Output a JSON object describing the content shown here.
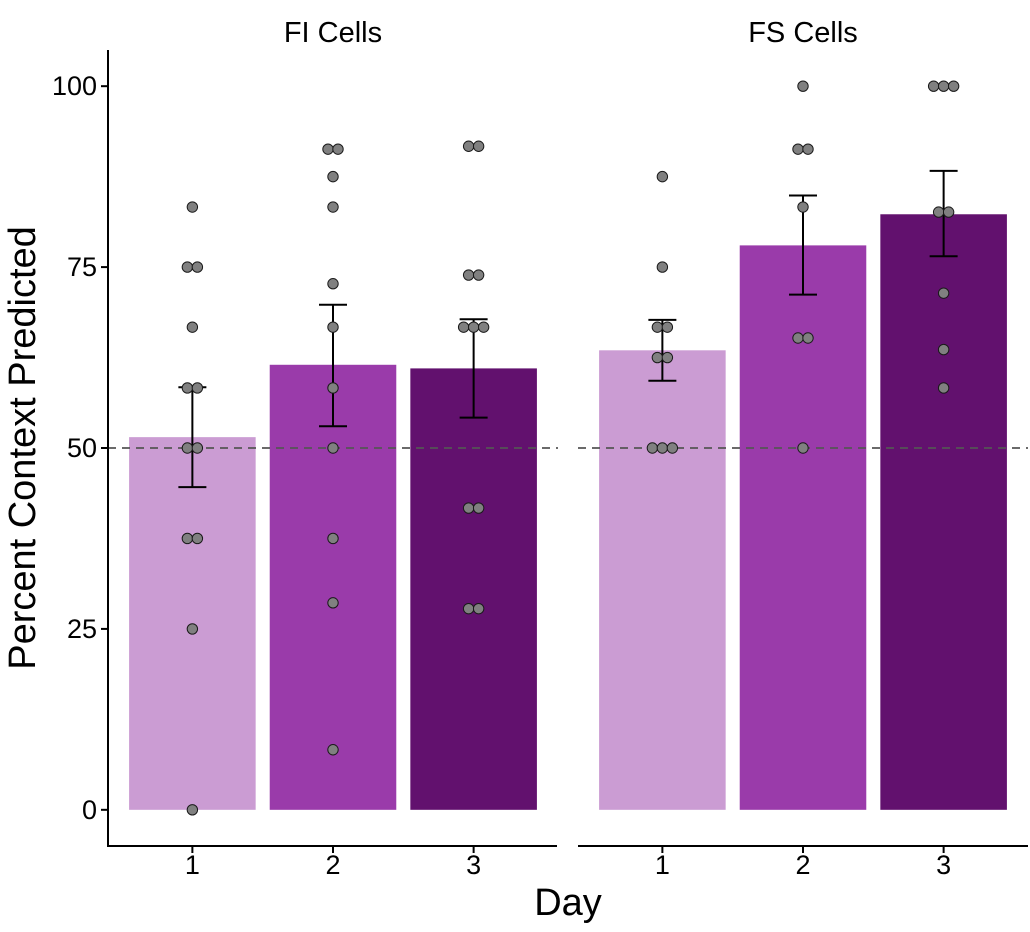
{
  "chart_data": {
    "type": "bar",
    "xlabel": "Day",
    "ylabel": "Percent Context Predicted",
    "ylim": [
      -5,
      105
    ],
    "yticks": [
      0,
      25,
      50,
      75,
      100
    ],
    "reference_line": 50,
    "colors": {
      "1": "#CB9CD3",
      "2": "#9A3BAA",
      "3": "#62116E",
      "points": "#808080",
      "errorbar": "#000000",
      "reference": "#555555"
    },
    "panels": [
      {
        "title": "FI Cells",
        "categories": [
          "1",
          "2",
          "3"
        ],
        "means": [
          51.5,
          61.5,
          61.0
        ],
        "error_low": [
          44.6,
          53.0,
          54.2
        ],
        "error_high": [
          58.4,
          69.8,
          67.8
        ],
        "points": [
          [
            83.3,
            75.0,
            75.0,
            66.7,
            58.3,
            58.3,
            50.0,
            50.0,
            37.5,
            37.5,
            25.0,
            0.0
          ],
          [
            91.3,
            91.3,
            87.5,
            83.3,
            72.7,
            66.7,
            58.3,
            50.0,
            37.5,
            28.6,
            8.3
          ],
          [
            91.7,
            91.7,
            73.9,
            73.9,
            66.7,
            66.7,
            66.7,
            41.7,
            41.7,
            27.8,
            27.8
          ]
        ]
      },
      {
        "title": "FS Cells",
        "categories": [
          "1",
          "2",
          "3"
        ],
        "means": [
          63.5,
          78.0,
          82.3
        ],
        "error_low": [
          59.3,
          71.2,
          76.5
        ],
        "error_high": [
          67.7,
          84.9,
          88.3
        ],
        "points": [
          [
            87.5,
            75.0,
            66.7,
            66.7,
            62.5,
            62.5,
            50.0,
            50.0,
            50.0
          ],
          [
            100.0,
            91.3,
            91.3,
            83.3,
            65.2,
            65.2,
            50.0
          ],
          [
            100.0,
            100.0,
            100.0,
            82.6,
            82.6,
            71.4,
            63.6,
            58.3
          ]
        ]
      }
    ]
  }
}
